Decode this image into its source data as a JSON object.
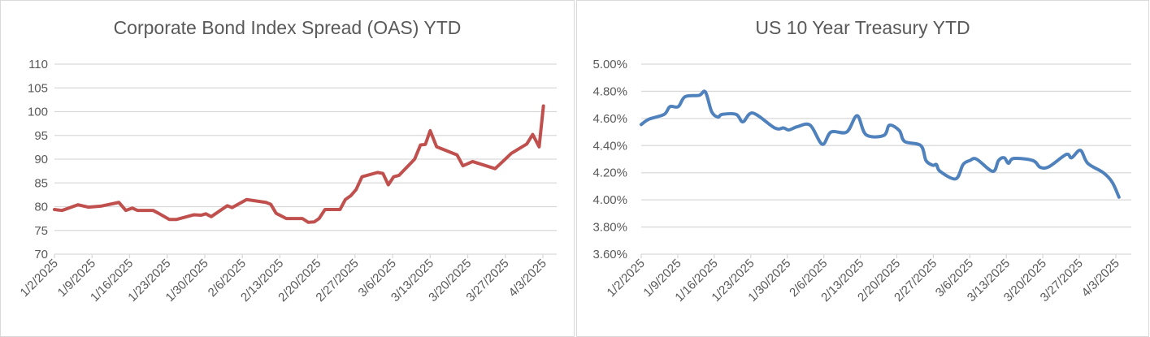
{
  "chart_data": [
    {
      "type": "line",
      "title": "Corporate Bond Index Spread (OAS) YTD",
      "xlabel": "",
      "ylabel": "",
      "color": "#c0504d",
      "x_unit": "days since 1/2/2025",
      "xticks": [
        "1/2/2025",
        "1/9/2025",
        "1/16/2025",
        "1/23/2025",
        "1/30/2025",
        "2/6/2025",
        "2/13/2025",
        "2/20/2025",
        "2/27/2025",
        "3/6/2025",
        "3/13/2025",
        "3/20/2025",
        "3/27/2025",
        "4/3/2025"
      ],
      "yticks": [
        "70",
        "75",
        "80",
        "85",
        "90",
        "95",
        "100",
        "105",
        "110"
      ],
      "ylim": [
        70,
        110
      ],
      "grid": true,
      "x": [
        0,
        1.4,
        4.4,
        6.3,
        8.6,
        12,
        13.3,
        14.5,
        15.5,
        18.4,
        19.4,
        21.4,
        22.7,
        26,
        27.3,
        28.2,
        29.2,
        32.2,
        33.1,
        35.8,
        39.4,
        40.3,
        41.3,
        43.2,
        46.2,
        47.3,
        48.4,
        49.3,
        50.4,
        53.2,
        54.2,
        55.2,
        56.2,
        57.3,
        60.2,
        61.2,
        62.2,
        63.2,
        64.2,
        67.1,
        68.2,
        69.1,
        70,
        71.2,
        75,
        76.1,
        77.9,
        82.1,
        83.8,
        85.1,
        88,
        89.1,
        90.3,
        91.1
      ],
      "y": [
        79.4,
        79.2,
        80.4,
        79.9,
        80.1,
        80.9,
        79.2,
        79.7,
        79.2,
        79.2,
        78.6,
        77.3,
        77.3,
        78.3,
        78.2,
        78.5,
        77.9,
        80.2,
        79.8,
        81.5,
        80.9,
        80.5,
        78.6,
        77.5,
        77.5,
        76.7,
        76.8,
        77.5,
        79.4,
        79.4,
        81.5,
        82.3,
        83.6,
        86.3,
        87.2,
        87.0,
        84.6,
        86.3,
        86.6,
        90.0,
        93.0,
        93.1,
        96.0,
        92.6,
        90.9,
        88.6,
        89.5,
        88.0,
        89.8,
        91.2,
        93.2,
        95.2,
        92.6,
        101.2
      ]
    },
    {
      "type": "line",
      "title": "US 10 Year Treasury YTD",
      "xlabel": "",
      "ylabel": "",
      "color": "#4f81bd",
      "x_unit": "days since 1/2/2025",
      "xticks": [
        "1/2/2025",
        "1/9/2025",
        "1/16/2025",
        "1/23/2025",
        "1/30/2025",
        "2/6/2025",
        "2/13/2025",
        "2/20/2025",
        "2/27/2025",
        "3/6/2025",
        "3/13/2025",
        "3/20/2025",
        "3/27/2025",
        "4/3/2025"
      ],
      "yticks": [
        "3.60%",
        "3.80%",
        "4.00%",
        "4.20%",
        "4.40%",
        "4.60%",
        "4.80%",
        "5.00%"
      ],
      "ylim": [
        3.6,
        5.0
      ],
      "grid": true,
      "x": [
        0,
        1.5,
        4.4,
        5.5,
        7.1,
        8.4,
        11.1,
        12.3,
        13.5,
        14.7,
        15.5,
        18.2,
        19.5,
        21.4,
        25.6,
        27.3,
        28.3,
        30,
        32.4,
        34.7,
        36.4,
        39.4,
        41.4,
        43.1,
        46.5,
        47.6,
        49.5,
        50.5,
        53.6,
        54.6,
        55.9,
        56.6,
        57.3,
        60.3,
        61.7,
        63,
        64.3,
        67.4,
        68.5,
        69.6,
        70.4,
        71.4,
        75.1,
        76.5,
        78.2,
        81.5,
        82.5,
        84.2,
        85.6,
        88.6,
        90.3,
        91.6
      ],
      "y": [
        4.555,
        4.595,
        4.63,
        4.687,
        4.687,
        4.76,
        4.77,
        4.795,
        4.65,
        4.61,
        4.63,
        4.63,
        4.575,
        4.64,
        4.53,
        4.53,
        4.515,
        4.54,
        4.55,
        4.41,
        4.5,
        4.5,
        4.62,
        4.48,
        4.475,
        4.55,
        4.51,
        4.43,
        4.4,
        4.29,
        4.255,
        4.26,
        4.21,
        4.155,
        4.26,
        4.29,
        4.3,
        4.21,
        4.29,
        4.31,
        4.27,
        4.305,
        4.29,
        4.24,
        4.245,
        4.335,
        4.31,
        4.365,
        4.27,
        4.2,
        4.13,
        4.02
      ]
    }
  ]
}
